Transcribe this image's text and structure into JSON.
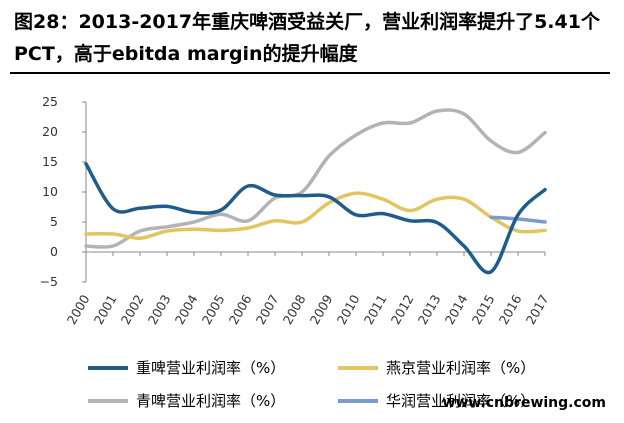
{
  "figure_title": "图28：2013-2017年重庆啤酒受益关厂，营业利润率提升了5.41个PCT，高于ebitda margin的提升幅度",
  "watermark": "www.cnbrewing.com",
  "chart_data": {
    "type": "line",
    "title": "图28：2013-2017年重庆啤酒受益关厂，营业利润率提升了5.41个PCT，高于ebitda margin的提升幅度",
    "xlabel": "",
    "ylabel": "",
    "ylim": [
      -5,
      25
    ],
    "yticks": [
      "25",
      "20",
      "15",
      "10",
      "5",
      "0",
      "−5"
    ],
    "x": [
      "2000",
      "2001",
      "2002",
      "2003",
      "2004",
      "2005",
      "2006",
      "2007",
      "2008",
      "2009",
      "2010",
      "2011",
      "2012",
      "2013",
      "2014",
      "2015",
      "2016",
      "2017"
    ],
    "grid": false,
    "legend_position": "bottom",
    "series": [
      {
        "name": "重啤营业利润率（%）",
        "color": "#1f5c8b",
        "values": [
          14.7,
          7.2,
          7.3,
          7.6,
          6.6,
          7.0,
          11.0,
          9.5,
          9.4,
          9.2,
          6.2,
          6.4,
          5.2,
          4.9,
          1.0,
          -3.3,
          6.2,
          10.4
        ]
      },
      {
        "name": "燕京营业利润率（%）",
        "color": "#e2c560",
        "values": [
          3.0,
          3.0,
          2.3,
          3.5,
          3.8,
          3.6,
          4.0,
          5.2,
          5.0,
          8.2,
          9.8,
          8.8,
          6.9,
          8.8,
          8.8,
          5.8,
          3.5,
          3.6
        ]
      },
      {
        "name": "青啤营业利润率（%）",
        "color": "#b3b3b3",
        "values": [
          1.0,
          1.0,
          3.5,
          4.2,
          5.0,
          6.3,
          5.2,
          9.0,
          10.0,
          16.0,
          19.5,
          21.5,
          21.5,
          23.5,
          23.0,
          18.5,
          16.6,
          19.9
        ]
      },
      {
        "name": "华润营业利润率（%）",
        "color": "#7b9bcf",
        "values": [
          null,
          null,
          null,
          null,
          null,
          null,
          null,
          null,
          null,
          null,
          null,
          null,
          null,
          null,
          null,
          5.8,
          5.5,
          5.0
        ]
      }
    ]
  }
}
